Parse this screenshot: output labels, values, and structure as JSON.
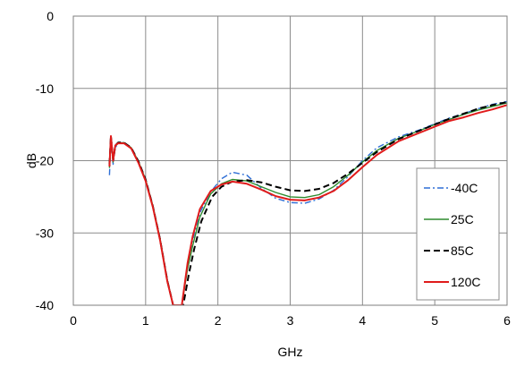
{
  "chart_data": {
    "type": "line",
    "title": "",
    "xlabel": "GHz",
    "ylabel": "dB",
    "xlim": [
      0,
      6
    ],
    "ylim": [
      -40,
      0
    ],
    "xticks": [
      0,
      1,
      2,
      3,
      4,
      5,
      6
    ],
    "yticks": [
      0,
      -10,
      -20,
      -30,
      -40
    ],
    "grid": true,
    "legend_position": "lower-right",
    "series": [
      {
        "name": "-40C",
        "color": "#2f6fd6",
        "dash": "dashdot",
        "x": [
          0.5,
          0.52,
          0.55,
          0.58,
          0.62,
          0.7,
          0.8,
          0.9,
          1.0,
          1.1,
          1.2,
          1.3,
          1.38,
          1.43,
          1.5,
          1.58,
          1.65,
          1.75,
          1.9,
          2.05,
          2.2,
          2.4,
          2.6,
          2.8,
          3.0,
          3.2,
          3.4,
          3.6,
          3.8,
          4.0,
          4.2,
          4.5,
          4.8,
          5.0,
          5.2,
          5.4,
          5.6,
          5.8,
          6.0
        ],
        "y": [
          -22.0,
          -17.2,
          -20.5,
          -18.2,
          -17.6,
          -17.5,
          -18.3,
          -20.2,
          -22.6,
          -26.2,
          -30.8,
          -36.5,
          -40.0,
          -40.0,
          -40.0,
          -34.5,
          -31.0,
          -27.2,
          -24.3,
          -22.5,
          -21.6,
          -22.0,
          -23.8,
          -25.2,
          -25.8,
          -25.9,
          -25.3,
          -24.1,
          -22.2,
          -20.0,
          -18.2,
          -16.7,
          -15.7,
          -14.9,
          -14.1,
          -13.5,
          -12.8,
          -12.2,
          -11.8
        ]
      },
      {
        "name": "25C",
        "color": "#2e8b2e",
        "dash": "solid",
        "x": [
          0.5,
          0.52,
          0.55,
          0.58,
          0.62,
          0.7,
          0.8,
          0.9,
          1.0,
          1.1,
          1.2,
          1.3,
          1.38,
          1.44,
          1.5,
          1.58,
          1.65,
          1.75,
          1.9,
          2.05,
          2.2,
          2.4,
          2.6,
          2.8,
          3.0,
          3.2,
          3.4,
          3.6,
          3.8,
          4.0,
          4.2,
          4.5,
          4.8,
          5.0,
          5.2,
          5.4,
          5.6,
          5.8,
          6.0
        ],
        "y": [
          -21.0,
          -16.8,
          -20.2,
          -18.0,
          -17.6,
          -17.5,
          -18.2,
          -20.1,
          -22.6,
          -26.2,
          -30.8,
          -36.5,
          -40.0,
          -40.0,
          -40.0,
          -35.0,
          -31.8,
          -27.8,
          -24.6,
          -23.2,
          -22.6,
          -22.8,
          -23.6,
          -24.4,
          -25.0,
          -25.1,
          -24.7,
          -23.6,
          -22.0,
          -20.2,
          -18.6,
          -16.9,
          -15.8,
          -15.0,
          -14.3,
          -13.6,
          -13.0,
          -12.5,
          -12.0
        ]
      },
      {
        "name": "85C",
        "color": "#000000",
        "dash": "dashed",
        "x": [
          0.5,
          0.52,
          0.55,
          0.58,
          0.62,
          0.7,
          0.8,
          0.9,
          1.0,
          1.1,
          1.2,
          1.3,
          1.38,
          1.45,
          1.52,
          1.6,
          1.67,
          1.77,
          1.92,
          2.05,
          2.2,
          2.4,
          2.6,
          2.8,
          3.0,
          3.2,
          3.4,
          3.6,
          3.8,
          4.0,
          4.2,
          4.5,
          4.8,
          5.0,
          5.2,
          5.4,
          5.6,
          5.8,
          6.0
        ],
        "y": [
          -20.5,
          -16.6,
          -20.0,
          -17.9,
          -17.5,
          -17.5,
          -18.2,
          -20.1,
          -22.6,
          -26.3,
          -30.9,
          -36.6,
          -40.0,
          -40.0,
          -40.0,
          -35.6,
          -32.3,
          -28.4,
          -25.0,
          -23.6,
          -22.9,
          -22.7,
          -23.0,
          -23.6,
          -24.1,
          -24.2,
          -23.9,
          -23.1,
          -21.8,
          -20.3,
          -18.8,
          -17.0,
          -15.8,
          -15.0,
          -14.2,
          -13.5,
          -12.8,
          -12.3,
          -11.9
        ]
      },
      {
        "name": "120C",
        "color": "#e01b1b",
        "dash": "solid",
        "x": [
          0.5,
          0.52,
          0.55,
          0.58,
          0.62,
          0.7,
          0.8,
          0.9,
          1.0,
          1.1,
          1.2,
          1.3,
          1.38,
          1.44,
          1.5,
          1.58,
          1.65,
          1.75,
          1.9,
          2.05,
          2.2,
          2.4,
          2.6,
          2.8,
          3.0,
          3.2,
          3.4,
          3.6,
          3.8,
          4.0,
          4.2,
          4.5,
          4.8,
          5.0,
          5.2,
          5.4,
          5.6,
          5.8,
          6.0
        ],
        "y": [
          -20.8,
          -16.6,
          -20.0,
          -17.9,
          -17.6,
          -17.6,
          -18.3,
          -20.3,
          -22.8,
          -26.4,
          -31.0,
          -36.7,
          -40.0,
          -40.0,
          -40.0,
          -34.2,
          -30.5,
          -26.7,
          -24.2,
          -23.3,
          -22.9,
          -23.2,
          -24.0,
          -24.9,
          -25.4,
          -25.5,
          -25.1,
          -24.2,
          -22.7,
          -20.9,
          -19.2,
          -17.3,
          -16.1,
          -15.3,
          -14.5,
          -14.0,
          -13.4,
          -12.9,
          -12.3
        ]
      }
    ]
  }
}
